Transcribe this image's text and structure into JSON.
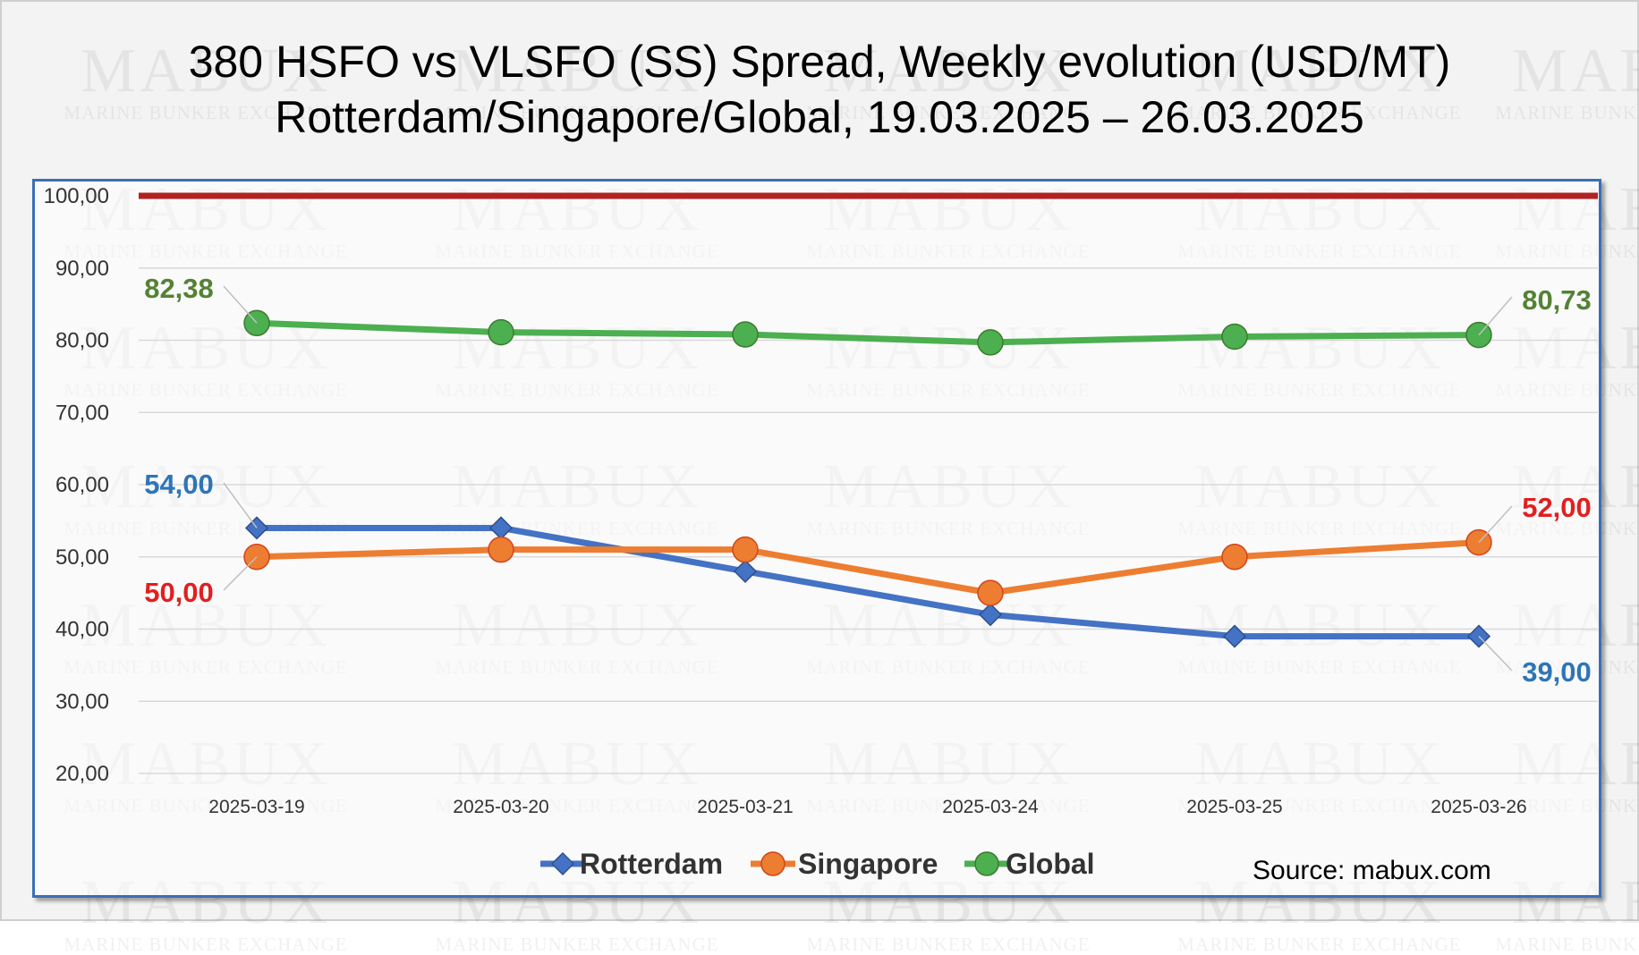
{
  "watermark": {
    "brand": "MABUX",
    "tagline": "MARINE BUNKER EXCHANGE"
  },
  "title_line1": "380 HSFO vs VLSFO (SS) Spread, Weekly evolution (USD/MT)",
  "title_line2": "Rotterdam/Singapore/Global, 19.03.2025 – 26.03.2025",
  "source": "Source: mabux.com",
  "chart_data": {
    "type": "line",
    "title": "380 HSFO vs VLSFO (SS) Spread, Weekly evolution (USD/MT)",
    "subtitle": "Rotterdam/Singapore/Global, 19.03.2025 – 26.03.2025",
    "xlabel": "",
    "ylabel": "",
    "ylim": [
      20,
      100
    ],
    "yticks": [
      20,
      30,
      40,
      50,
      60,
      70,
      80,
      90,
      100
    ],
    "ytick_labels": [
      "20,00",
      "30,00",
      "40,00",
      "50,00",
      "60,00",
      "70,00",
      "80,00",
      "90,00",
      "100,00"
    ],
    "categories": [
      "2025-03-19",
      "2025-03-20",
      "2025-03-21",
      "2025-03-24",
      "2025-03-25",
      "2025-03-26"
    ],
    "grid": true,
    "legend_position": "bottom",
    "reference_line": {
      "value": 100,
      "color": "#b22222"
    },
    "series": [
      {
        "name": "Rotterdam",
        "color": "#4472c4",
        "marker": "diamond",
        "values": [
          54,
          54,
          48,
          42,
          39,
          39
        ]
      },
      {
        "name": "Singapore",
        "color": "#ed7d31",
        "marker": "circle",
        "values": [
          50,
          51,
          51,
          45,
          50,
          52
        ]
      },
      {
        "name": "Global",
        "color": "#4caf50",
        "marker": "circle",
        "values": [
          82.38,
          81.1,
          80.8,
          79.7,
          80.5,
          80.73
        ]
      }
    ],
    "annotations": [
      {
        "series": "Global",
        "index": 0,
        "text": "82,38",
        "color": "#548235"
      },
      {
        "series": "Global",
        "index": 5,
        "text": "80,73",
        "color": "#548235"
      },
      {
        "series": "Rotterdam",
        "index": 0,
        "text": "54,00",
        "color": "#2e75b6"
      },
      {
        "series": "Rotterdam",
        "index": 5,
        "text": "39,00",
        "color": "#2e75b6"
      },
      {
        "series": "Singapore",
        "index": 0,
        "text": "50,00",
        "color": "#e02020"
      },
      {
        "series": "Singapore",
        "index": 5,
        "text": "52,00",
        "color": "#e02020"
      }
    ]
  }
}
